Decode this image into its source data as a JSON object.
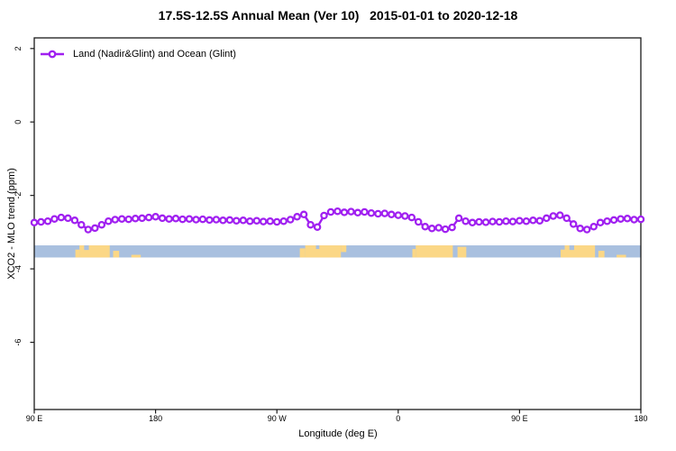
{
  "title": "17.5S-12.5S Annual Mean (Ver 10)   2015-01-01 to 2020-12-18",
  "legend": {
    "label": "Land (Nadir&Glint) and Ocean (Glint)",
    "marker": "open-circle-on-line"
  },
  "colors": {
    "series": "#A020F0",
    "marker_fill": "#FFFFFF",
    "ocean": "#A9C0DF",
    "land": "#FBD786",
    "axis": "#1A1A1A",
    "text": "#000000",
    "background": "#FFFFFF"
  },
  "chart_data": {
    "type": "line",
    "title": "17.5S-12.5S Annual Mean (Ver 10)   2015-01-01 to 2020-12-18",
    "xlabel": "Longitude (deg E)",
    "ylabel": "XCO2 - MLO trend (ppm)",
    "xlim": [
      90,
      540
    ],
    "ylim": [
      -7.83,
      2.29
    ],
    "grid": false,
    "legend_position": "top-left-inside",
    "x_ticks": [
      {
        "pos": 90,
        "label": "90 E"
      },
      {
        "pos": 180,
        "label": "180"
      },
      {
        "pos": 270,
        "label": "90 W"
      },
      {
        "pos": 360,
        "label": "0"
      },
      {
        "pos": 450,
        "label": "90 E"
      },
      {
        "pos": 540,
        "label": "180"
      }
    ],
    "y_ticks": [
      {
        "pos": 2,
        "label": "2"
      },
      {
        "pos": 0,
        "label": "0"
      },
      {
        "pos": -2,
        "label": "-2"
      },
      {
        "pos": -4,
        "label": "-4"
      },
      {
        "pos": -6,
        "label": "-6"
      }
    ],
    "x": [
      90,
      95,
      100,
      105,
      110,
      115,
      120,
      125,
      130,
      135,
      140,
      145,
      150,
      155,
      160,
      165,
      170,
      175,
      180,
      185,
      190,
      195,
      200,
      205,
      210,
      215,
      220,
      225,
      230,
      235,
      240,
      245,
      250,
      255,
      260,
      265,
      270,
      275,
      280,
      285,
      290,
      295,
      300,
      305,
      310,
      315,
      320,
      325,
      330,
      335,
      340,
      345,
      350,
      355,
      360,
      365,
      370,
      375,
      380,
      385,
      390,
      395,
      400,
      405,
      410,
      415,
      420,
      425,
      430,
      435,
      440,
      445,
      450,
      455,
      460,
      465,
      470,
      475,
      480,
      485,
      490,
      495,
      500,
      505,
      510,
      515,
      520,
      525,
      530,
      535,
      540
    ],
    "series": [
      {
        "name": "Land (Nadir&Glint) and Ocean (Glint)",
        "values": [
          -2.74,
          -2.72,
          -2.7,
          -2.64,
          -2.6,
          -2.62,
          -2.68,
          -2.8,
          -2.93,
          -2.89,
          -2.8,
          -2.7,
          -2.66,
          -2.64,
          -2.65,
          -2.63,
          -2.62,
          -2.6,
          -2.58,
          -2.62,
          -2.64,
          -2.63,
          -2.65,
          -2.64,
          -2.66,
          -2.65,
          -2.67,
          -2.66,
          -2.68,
          -2.67,
          -2.69,
          -2.68,
          -2.7,
          -2.69,
          -2.71,
          -2.7,
          -2.72,
          -2.7,
          -2.66,
          -2.58,
          -2.52,
          -2.8,
          -2.86,
          -2.55,
          -2.45,
          -2.43,
          -2.46,
          -2.44,
          -2.47,
          -2.45,
          -2.48,
          -2.5,
          -2.49,
          -2.52,
          -2.54,
          -2.56,
          -2.6,
          -2.72,
          -2.85,
          -2.9,
          -2.88,
          -2.92,
          -2.87,
          -2.62,
          -2.7,
          -2.74,
          -2.72,
          -2.73,
          -2.71,
          -2.72,
          -2.7,
          -2.71,
          -2.69,
          -2.7,
          -2.68,
          -2.69,
          -2.62,
          -2.56,
          -2.54,
          -2.62,
          -2.78,
          -2.9,
          -2.93,
          -2.85,
          -2.74,
          -2.7,
          -2.67,
          -2.64,
          -2.63,
          -2.66,
          -2.65
        ]
      }
    ],
    "map_strip": {
      "description": "land-ocean latitude strip drawn across plot",
      "ppm_top": -3.36,
      "ppm_bottom": -3.69,
      "land_segments": [
        [
          120.5,
          123.5,
          0.35,
          1
        ],
        [
          123.5,
          146,
          0,
          1
        ],
        [
          148.5,
          153,
          0.45,
          1
        ],
        [
          162,
          169,
          0.78,
          1
        ],
        [
          287,
          291,
          0.25,
          1
        ],
        [
          291,
          317.5,
          0,
          1
        ],
        [
          317.5,
          321.5,
          0,
          0.55
        ],
        [
          370.5,
          373,
          0.3,
          1
        ],
        [
          373,
          400.5,
          0,
          1
        ],
        [
          404,
          410.5,
          0.12,
          1
        ],
        [
          480.5,
          483.5,
          0.35,
          1
        ],
        [
          483.5,
          506,
          0,
          1
        ],
        [
          508.5,
          513,
          0.45,
          1
        ],
        [
          522,
          529,
          0.78,
          1
        ]
      ],
      "water_notches": [
        [
          127,
          130.5,
          0,
          0.38
        ],
        [
          299,
          301.5,
          0,
          0.3
        ],
        [
          487,
          490.5,
          0,
          0.38
        ]
      ]
    }
  }
}
